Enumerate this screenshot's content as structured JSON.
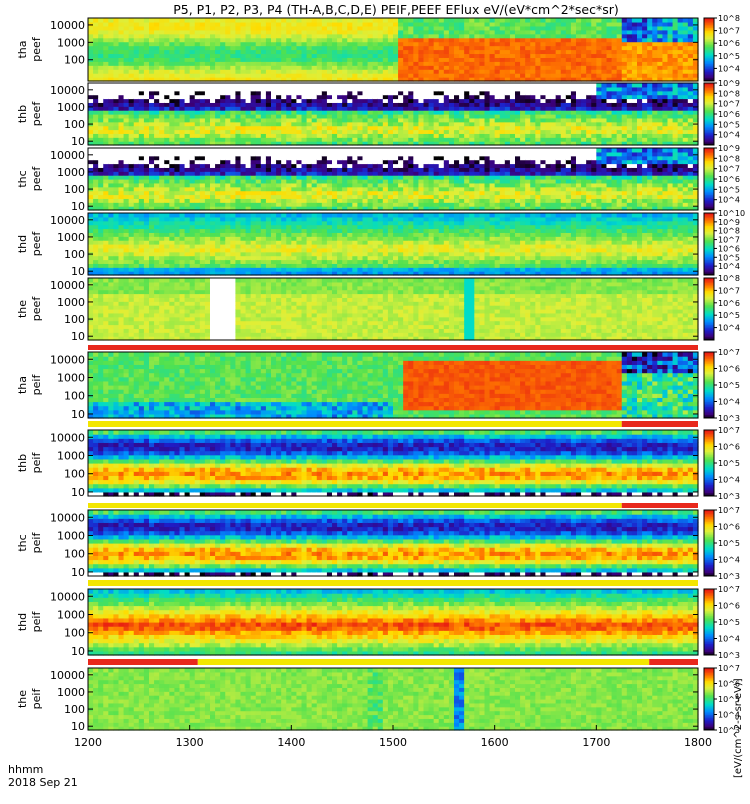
{
  "chart_data": {
    "type": "heatmap",
    "title": "P5, P1, P2, P3, P4 (TH-A,B,C,D,E) PEIF,PEEF EFlux eV/(eV*cm^2*sec*sr)",
    "x_axis": {
      "label_time": "hhmm",
      "label_date": "2018 Sep 21",
      "range": [
        1200,
        1800
      ],
      "ticks": [
        "1200",
        "1300",
        "1400",
        "1500",
        "1600",
        "1700",
        "1800"
      ]
    },
    "y_axis": {
      "scale": "log",
      "range": [
        6,
        25000
      ]
    },
    "colorbar_unit": "[eV/(cm^2-s-sr-eV)]",
    "panels": [
      {
        "probe": "tha",
        "product": "peef",
        "yticks": [
          "100",
          "1000",
          "10000"
        ],
        "cbar_ticks": [
          "10^4",
          "10^5",
          "10^6",
          "10^7",
          "10^8"
        ],
        "cbar_range": [
          3,
          8
        ]
      },
      {
        "probe": "thb",
        "product": "peef",
        "yticks": [
          "10",
          "100",
          "1000",
          "10000"
        ],
        "cbar_ticks": [
          "10^4",
          "10^5",
          "10^6",
          "10^7",
          "10^8",
          "10^9"
        ],
        "cbar_range": [
          3,
          9
        ]
      },
      {
        "probe": "thc",
        "product": "peef",
        "yticks": [
          "10",
          "100",
          "1000",
          "10000"
        ],
        "cbar_ticks": [
          "10^4",
          "10^5",
          "10^6",
          "10^7",
          "10^8",
          "10^9"
        ],
        "cbar_range": [
          3,
          9
        ]
      },
      {
        "probe": "thd",
        "product": "peef",
        "yticks": [
          "10",
          "100",
          "1000",
          "10000"
        ],
        "cbar_ticks": [
          "10^4",
          "10^5",
          "10^6",
          "10^7",
          "10^8",
          "10^9",
          "10^10"
        ],
        "cbar_range": [
          3,
          10
        ]
      },
      {
        "probe": "the",
        "product": "peef",
        "yticks": [
          "10",
          "100",
          "1000",
          "10000"
        ],
        "cbar_ticks": [
          "10^4",
          "10^5",
          "10^6",
          "10^7",
          "10^8"
        ],
        "cbar_range": [
          3,
          8
        ]
      },
      {
        "probe": "tha",
        "product": "peif",
        "yticks": [
          "10",
          "100",
          "1000",
          "10000"
        ],
        "cbar_ticks": [
          "10^3",
          "10^4",
          "10^5",
          "10^6",
          "10^7"
        ],
        "cbar_range": [
          3,
          7
        ]
      },
      {
        "probe": "thb",
        "product": "peif",
        "yticks": [
          "10",
          "100",
          "1000",
          "10000"
        ],
        "cbar_ticks": [
          "10^3",
          "10^4",
          "10^5",
          "10^6",
          "10^7"
        ],
        "cbar_range": [
          3,
          7
        ]
      },
      {
        "probe": "thc",
        "product": "peif",
        "yticks": [
          "10",
          "100",
          "1000",
          "10000"
        ],
        "cbar_ticks": [
          "10^3",
          "10^4",
          "10^5",
          "10^6",
          "10^7"
        ],
        "cbar_range": [
          3,
          7
        ]
      },
      {
        "probe": "thd",
        "product": "peif",
        "yticks": [
          "10",
          "100",
          "1000",
          "10000"
        ],
        "cbar_ticks": [
          "10^3",
          "10^4",
          "10^5",
          "10^6",
          "10^7"
        ],
        "cbar_range": [
          3,
          7
        ]
      },
      {
        "probe": "the",
        "product": "peif",
        "yticks": [
          "10",
          "100",
          "1000",
          "10000"
        ],
        "cbar_ticks": [
          "10^3",
          "10^4",
          "10^5",
          "10^6",
          "10^7"
        ],
        "cbar_range": [
          3,
          7
        ]
      }
    ],
    "bars": [
      {
        "segments": [
          {
            "from": 1200,
            "to": 1800,
            "color": "#e8281c"
          }
        ]
      },
      {
        "segments": [
          {
            "from": 1200,
            "to": 1725,
            "color": "#f3e600"
          },
          {
            "from": 1725,
            "to": 1800,
            "color": "#e8281c"
          }
        ]
      },
      {
        "segments": [
          {
            "from": 1200,
            "to": 1725,
            "color": "#f3e600"
          },
          {
            "from": 1725,
            "to": 1800,
            "color": "#e8281c"
          }
        ]
      },
      {
        "segments": [
          {
            "from": 1200,
            "to": 1800,
            "color": "#f3e600"
          }
        ]
      },
      {
        "segments": [
          {
            "from": 1200,
            "to": 1308,
            "color": "#e8281c"
          },
          {
            "from": 1308,
            "to": 1752,
            "color": "#f3e600"
          },
          {
            "from": 1752,
            "to": 1800,
            "color": "#e8281c"
          }
        ]
      }
    ]
  }
}
